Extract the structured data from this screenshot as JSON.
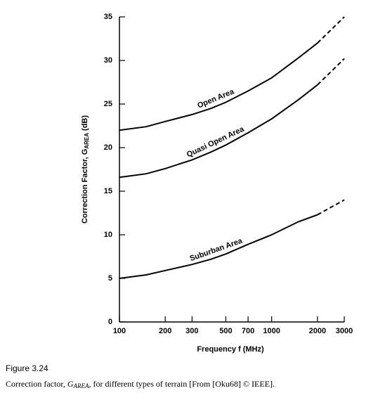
{
  "chart_data": {
    "type": "line",
    "xlabel": "Frequency f (MHz)",
    "ylabel_parts": [
      "Correction Factor, G",
      "AREA",
      " (dB)"
    ],
    "x": [
      100,
      150,
      200,
      300,
      400,
      500,
      700,
      1000,
      1500,
      2000,
      3000
    ],
    "series": [
      {
        "name": "Open Area",
        "color": "#000000",
        "values": [
          22,
          22.4,
          23,
          23.8,
          24.5,
          25.2,
          26.5,
          28,
          30.3,
          32,
          35
        ]
      },
      {
        "name": "Quasi Open Area",
        "color": "#000000",
        "values": [
          16.6,
          17,
          17.6,
          18.6,
          19.5,
          20.3,
          21.7,
          23.3,
          25.5,
          27.2,
          30.2
        ]
      },
      {
        "name": "Suburban Area",
        "color": "#000000",
        "values": [
          5,
          5.4,
          5.9,
          6.6,
          7.2,
          7.8,
          8.9,
          10,
          11.5,
          12.3,
          14
        ]
      }
    ],
    "dashed_from_x": 2000,
    "xscale": "log",
    "xlim": [
      100,
      3000
    ],
    "xticks": [
      100,
      200,
      300,
      500,
      700,
      1000,
      2000,
      3000
    ],
    "ylim": [
      0,
      35
    ],
    "yticks": [
      0,
      5,
      10,
      15,
      20,
      25,
      30,
      35
    ],
    "figure_label": "Figure 3.24",
    "caption_parts": [
      "Correction factor, ",
      "G",
      "AREA",
      ", for different types of terrain [From [Oku68] © IEEE]."
    ]
  }
}
